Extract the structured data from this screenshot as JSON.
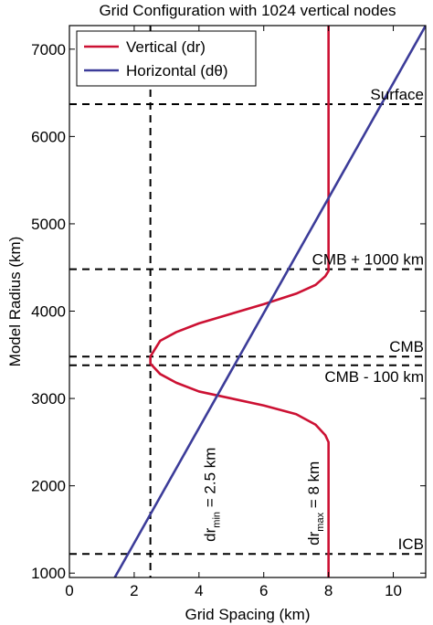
{
  "chart_data": {
    "type": "line",
    "title": "Grid Configuration with 1024 vertical nodes",
    "xlabel": "Grid Spacing (km)",
    "ylabel": "Model Radius (km)",
    "xlim": [
      0,
      11
    ],
    "ylim": [
      950,
      7270
    ],
    "x_ticks": [
      0,
      2,
      4,
      6,
      8,
      10
    ],
    "y_ticks": [
      1000,
      2000,
      3000,
      4000,
      5000,
      6000,
      7000
    ],
    "grid": false,
    "legend_position": "top-left",
    "series": [
      {
        "name": "Vertical (dr)",
        "color": "#cc1133",
        "points": [
          [
            8.0,
            950
          ],
          [
            8.0,
            2500
          ],
          [
            7.9,
            2580
          ],
          [
            7.6,
            2700
          ],
          [
            7.0,
            2820
          ],
          [
            6.0,
            2920
          ],
          [
            5.0,
            3000
          ],
          [
            4.0,
            3080
          ],
          [
            3.3,
            3180
          ],
          [
            2.8,
            3280
          ],
          [
            2.5,
            3400
          ],
          [
            2.5,
            3480
          ],
          [
            2.8,
            3660
          ],
          [
            3.3,
            3760
          ],
          [
            4.0,
            3860
          ],
          [
            5.0,
            3970
          ],
          [
            6.0,
            4080
          ],
          [
            7.0,
            4200
          ],
          [
            7.6,
            4300
          ],
          [
            7.9,
            4400
          ],
          [
            8.0,
            4460
          ],
          [
            8.0,
            7270
          ]
        ]
      },
      {
        "name": "Horizontal (dθ)",
        "color": "#3c3c99",
        "points": [
          [
            1.4,
            950
          ],
          [
            11.0,
            7270
          ]
        ]
      }
    ],
    "reference_lines": {
      "horizontal": [
        {
          "y": 6370,
          "label": "Surface"
        },
        {
          "y": 4480,
          "label": "CMB + 1000 km"
        },
        {
          "y": 3480,
          "label": "CMB"
        },
        {
          "y": 3380,
          "label": "CMB - 100 km"
        },
        {
          "y": 1220,
          "label": "ICB"
        }
      ],
      "vertical": [
        {
          "x": 2.5
        }
      ]
    },
    "annotations": [
      {
        "text": "dr",
        "sub": "min",
        "rest": " = 2.5 km",
        "x": 4.5,
        "y": 1900,
        "rotated": true
      },
      {
        "text": "dr",
        "sub": "max",
        "rest": " = 8 km",
        "x": 7.7,
        "y": 1800,
        "rotated": true
      }
    ]
  }
}
